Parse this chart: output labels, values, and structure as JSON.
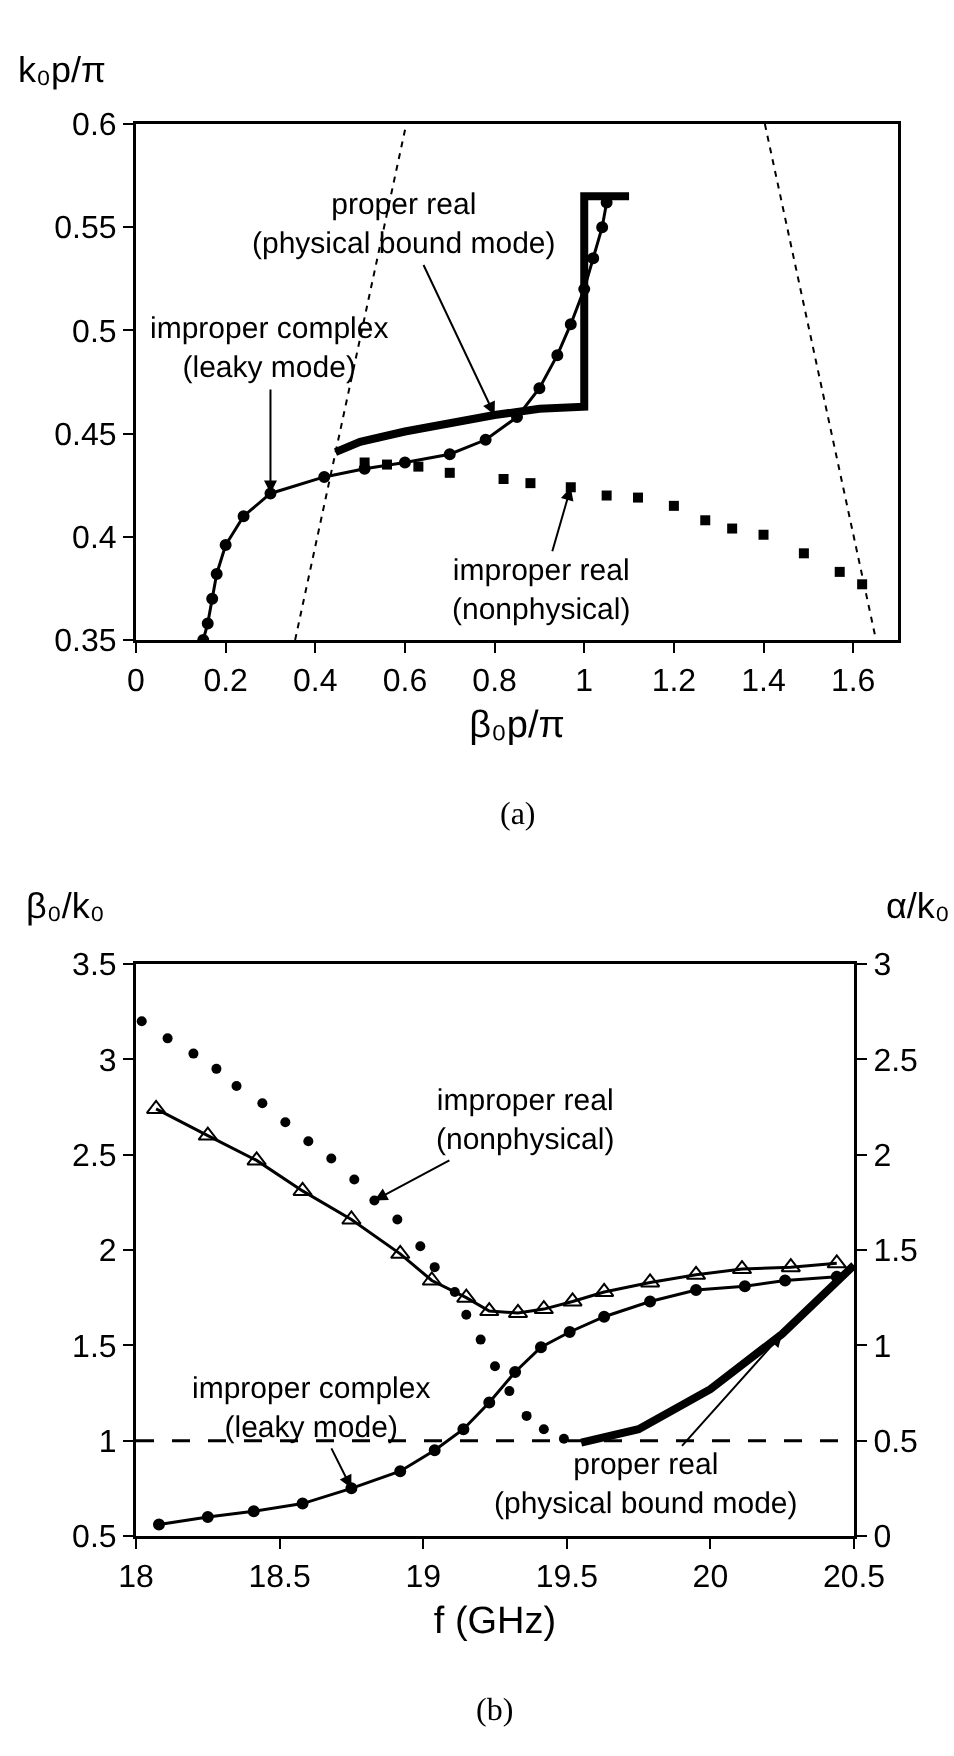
{
  "chart_data": [
    {
      "type": "line",
      "xlabel": "β₀p/π",
      "ylabel": "k₀p/π",
      "xlim": [
        0,
        1.7
      ],
      "ylim": [
        0.35,
        0.6
      ],
      "xticks": [
        0,
        0.2,
        0.4,
        0.6,
        0.8,
        1,
        1.2,
        1.4,
        1.6
      ],
      "yticks": [
        0.35,
        0.4,
        0.45,
        0.5,
        0.55,
        0.6
      ],
      "series": [
        {
          "color": "#000000",
          "marker": "circle",
          "line_style": "solid",
          "x": [
            0.15,
            0.16,
            0.17,
            0.18,
            0.2,
            0.24,
            0.3,
            0.42,
            0.51,
            0.6,
            0.7,
            0.78,
            0.85,
            0.9,
            0.94,
            0.97,
            1.0,
            1.02,
            1.04,
            1.05
          ],
          "values": [
            0.35,
            0.358,
            0.37,
            0.382,
            0.396,
            0.41,
            0.421,
            0.429,
            0.433,
            0.436,
            0.44,
            0.447,
            0.458,
            0.472,
            0.488,
            0.503,
            0.52,
            0.535,
            0.55,
            0.562
          ]
        },
        {
          "type": "line",
          "color": "#000000",
          "marker": "none",
          "line_style": "solid",
          "x": [
            0.445,
            0.5,
            0.6,
            0.7,
            0.8,
            0.9,
            1.0,
            1.0,
            1.1
          ],
          "values": [
            0.441,
            0.446,
            0.451,
            0.455,
            0.459,
            0.462,
            0.463,
            0.565,
            0.565
          ]
        },
        {
          "type": "scatter",
          "color": "#000000",
          "marker": "square",
          "x": [
            0.51,
            0.56,
            0.63,
            0.7,
            0.82,
            0.88,
            0.97,
            1.05,
            1.12,
            1.2,
            1.27,
            1.33,
            1.4,
            1.49,
            1.57,
            1.62
          ],
          "values": [
            0.436,
            0.435,
            0.434,
            0.431,
            0.428,
            0.426,
            0.424,
            0.42,
            0.419,
            0.415,
            0.408,
            0.404,
            0.401,
            0.392,
            0.383,
            0.377
          ]
        },
        {
          "type": "line",
          "color": "#000000",
          "marker": "none",
          "line_style": "dotted",
          "x": [
            0.355,
            0.603
          ],
          "values": [
            0.35,
            0.6
          ]
        },
        {
          "type": "line",
          "color": "#000000",
          "marker": "none",
          "line_style": "dotted",
          "x": [
            1.403,
            1.651
          ],
          "values": [
            0.6,
            0.35
          ]
        }
      ],
      "annotations": [
        {
          "text": "proper real\n(physical bound mode)",
          "x": 0.8,
          "y": 0.459
        },
        {
          "text": "improper complex\n(leaky mode)",
          "x": 0.3,
          "y": 0.421
        },
        {
          "text": "improper real\n(nonphysical)",
          "x": 0.97,
          "y": 0.424
        },
        "(a)"
      ]
    },
    {
      "type": "line",
      "xlabel": "f (GHz)",
      "ylabel": "β₀/k₀",
      "y2label": "α/k₀",
      "xlim": [
        18,
        20.5
      ],
      "ylim": [
        0.5,
        3.5
      ],
      "y2lim": [
        0,
        3
      ],
      "xticks": [
        18,
        18.5,
        19,
        19.5,
        20,
        20.5
      ],
      "yticks": [
        0.5,
        1,
        1.5,
        2,
        2.5,
        3,
        3.5
      ],
      "y2ticks": [
        0,
        0.5,
        1,
        1.5,
        2,
        2.5,
        3
      ],
      "series": [
        {
          "type": "line",
          "axis": "y2",
          "color": "#000000",
          "marker": "triangle",
          "line_style": "solid",
          "x": [
            18.07,
            18.25,
            18.42,
            18.58,
            18.75,
            18.92,
            19.03,
            19.15,
            19.23,
            19.33,
            19.42,
            19.52,
            19.63,
            19.79,
            19.95,
            20.11,
            20.28,
            20.44
          ],
          "values": [
            2.24,
            2.1,
            1.97,
            1.81,
            1.66,
            1.48,
            1.34,
            1.25,
            1.18,
            1.17,
            1.19,
            1.23,
            1.28,
            1.33,
            1.37,
            1.4,
            1.41,
            1.43
          ]
        },
        {
          "color": "#000000",
          "marker": "circle",
          "line_style": "solid",
          "x": [
            18.08,
            18.25,
            18.41,
            18.58,
            18.75,
            18.92,
            19.04,
            19.14,
            19.23,
            19.32,
            19.41,
            19.51,
            19.63,
            19.79,
            19.95,
            20.12,
            20.26,
            20.44
          ],
          "values": [
            0.56,
            0.6,
            0.63,
            0.67,
            0.75,
            0.84,
            0.95,
            1.06,
            1.2,
            1.36,
            1.49,
            1.57,
            1.65,
            1.73,
            1.79,
            1.81,
            1.84,
            1.86
          ]
        },
        {
          "type": "scatter",
          "color": "#000000",
          "marker": "circle",
          "x": [
            18.02,
            18.11,
            18.2,
            18.28,
            18.35,
            18.44,
            18.52,
            18.6,
            18.68,
            18.76,
            18.83,
            18.91,
            18.99,
            19.04,
            19.11,
            19.15,
            19.2,
            19.25,
            19.3,
            19.36,
            19.42,
            19.49
          ],
          "values": [
            3.2,
            3.11,
            3.03,
            2.95,
            2.86,
            2.77,
            2.67,
            2.57,
            2.48,
            2.37,
            2.26,
            2.16,
            2.02,
            1.91,
            1.78,
            1.66,
            1.53,
            1.39,
            1.26,
            1.13,
            1.06,
            1.01
          ]
        },
        {
          "type": "line",
          "color": "#000000",
          "marker": "none",
          "line_style": "solid",
          "x": [
            19.55,
            19.75,
            20.0,
            20.25,
            20.5
          ],
          "values": [
            0.99,
            1.06,
            1.27,
            1.56,
            1.92
          ]
        }
      ],
      "ref_lines": [
        {
          "axis": "y",
          "value": 1,
          "color": "#000000",
          "line_style": "dashed"
        }
      ],
      "annotations": [
        {
          "text": "improper real\n(nonphysical)",
          "x": 18.83,
          "y": 2.26
        },
        {
          "text": "improper complex\n(leaky mode)",
          "x": 18.75,
          "y": 0.75
        },
        {
          "text": "proper real\n(physical bound mode)",
          "x": 20.25,
          "y": 1.56
        },
        "(b)"
      ]
    }
  ]
}
